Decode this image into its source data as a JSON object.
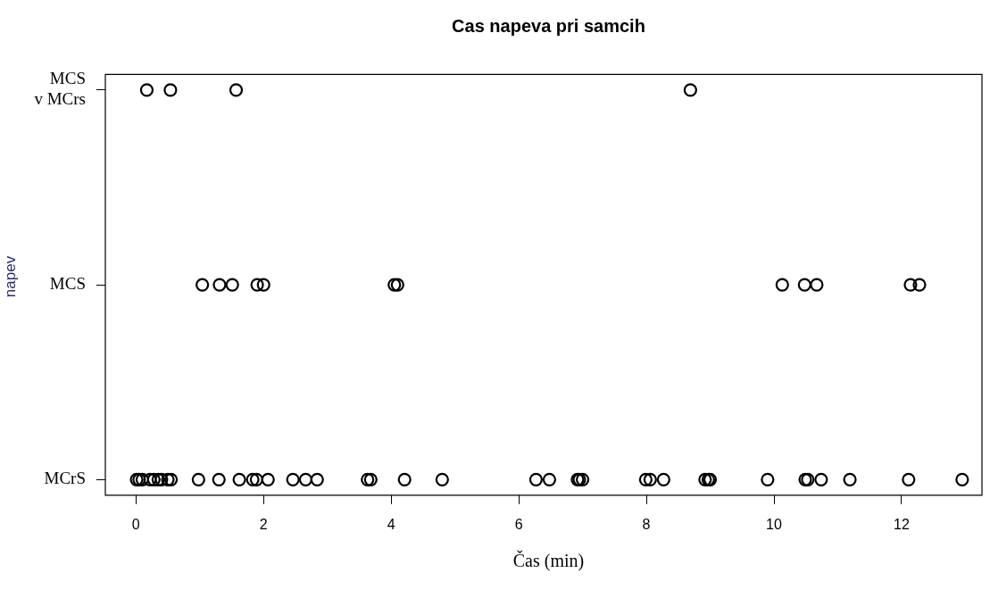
{
  "chart_data": {
    "type": "scatter",
    "title": "Cas napeva pri samcih",
    "xlabel": "Čas (min)",
    "ylabel": "napev",
    "orientation": "horizontal",
    "categories": [
      "MCS\nv MCrs",
      "MCS",
      "MCrS"
    ],
    "series": [
      {
        "color": "#000000",
        "x": [
          "MCS\nv MCrs",
          "MCS\nv MCrs",
          "MCS\nv MCrs",
          "MCS\nv MCrs"
        ],
        "values": [
          0.17,
          0.54,
          1.57,
          8.69
        ]
      },
      {
        "color": "#000000",
        "x": [
          "MCS",
          "MCS",
          "MCS",
          "MCS",
          "MCS",
          "MCS",
          "MCS",
          "MCS",
          "MCS",
          "MCS",
          "MCS",
          "MCS",
          "MCS"
        ],
        "values": [
          1.04,
          1.31,
          1.51,
          1.9,
          2.0,
          4.05,
          null,
          4.1,
          10.13,
          10.48,
          10.67,
          12.14,
          12.28
        ]
      },
      {
        "color": "#000000",
        "x": [
          "MCrS",
          "MCrS",
          "MCrS",
          "MCrS",
          "MCrS",
          "MCrS",
          "MCrS",
          "MCrS",
          "MCrS",
          "MCrS",
          "MCrS",
          "MCrS",
          "MCrS",
          "MCrS",
          "MCrS",
          "MCrS",
          "MCrS",
          "MCrS",
          "MCrS",
          "MCrS",
          "MCrS",
          "MCrS",
          "MCrS",
          "MCrS",
          "MCrS",
          "MCrS",
          "MCrS",
          "MCrS",
          "MCrS",
          "MCrS",
          "MCrS",
          "MCrS",
          "MCrS",
          "MCrS",
          "MCrS",
          "MCrS",
          "MCrS",
          "MCrS",
          "MCrS",
          "MCrS",
          "MCrS"
        ],
        "values": [
          0.01,
          0.05,
          0.1,
          0.22,
          0.28,
          0.35,
          0.4,
          0.5,
          0.55,
          0.98,
          1.3,
          1.62,
          1.83,
          1.89,
          2.07,
          2.46,
          2.66,
          2.84,
          3.63,
          null,
          3.68,
          4.21,
          4.8,
          6.27,
          6.48,
          6.92,
          6.95,
          7.0,
          7.99,
          8.06,
          8.27,
          8.92,
          8.97,
          9.0,
          9.9,
          10.49,
          10.53,
          10.74,
          11.19,
          12.11,
          12.95
        ]
      }
    ],
    "xlim": [
      -0.48,
      13.26
    ],
    "xticks": [
      0,
      2,
      4,
      6,
      8,
      10,
      12
    ],
    "marker": "circle",
    "grid": false,
    "legend": false
  }
}
